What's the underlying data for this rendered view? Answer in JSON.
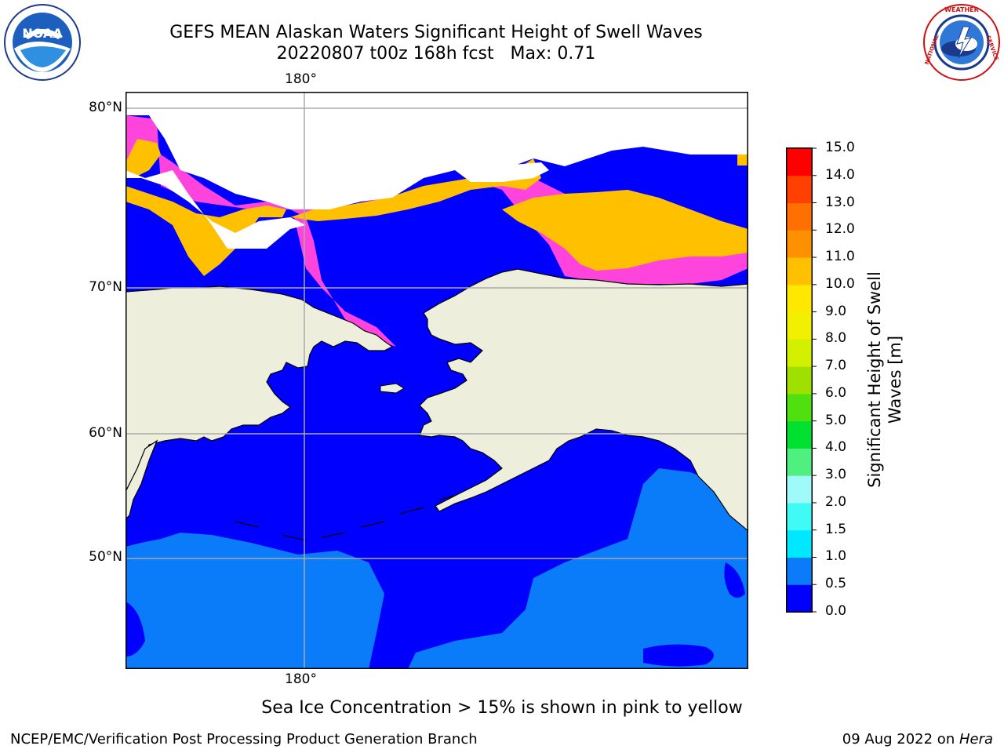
{
  "header": {
    "title_line1": "GEFS MEAN Alaskan Waters Significant Height of Swell Waves",
    "title_line2": "20220807 t00z 168h fcst   Max: 0.71"
  },
  "logos": {
    "left": {
      "icon": "noaa-logo-icon",
      "text": "NOAA",
      "ring_text": "NATIONAL OCEANIC AND ATMOSPHERIC ADMINISTRATION · U.S. DEPARTMENT OF COMMERCE"
    },
    "right": {
      "icon": "nws-logo-icon",
      "ring_text": "NATIONAL WEATHER SERVICE"
    }
  },
  "map": {
    "lon_labels": {
      "top": "180°",
      "bottom": "180°"
    },
    "lat_labels": [
      "80°N",
      "70°N",
      "60°N",
      "50°N"
    ],
    "colors": {
      "land": "#eeeedd",
      "water_low": "#0000ff",
      "water_mid": "#0a7cfa",
      "ice_pink": "#ff44dd",
      "ice_yellow": "#ffc000",
      "grid": "#aaaaaa"
    }
  },
  "colorbar": {
    "label": "Significant Height of Swell Waves [m]",
    "ticks": [
      "0.0",
      "0.5",
      "1.0",
      "1.5",
      "2.0",
      "3.0",
      "4.0",
      "5.0",
      "6.0",
      "7.0",
      "8.0",
      "9.0",
      "10.0",
      "11.0",
      "12.0",
      "13.0",
      "14.0",
      "15.0"
    ],
    "colors": [
      "#0000ff",
      "#0a7cfa",
      "#00e8ff",
      "#3ffaf5",
      "#a0fafa",
      "#50f080",
      "#00e030",
      "#50e010",
      "#a0e000",
      "#d2f000",
      "#f0f000",
      "#ffe800",
      "#ffc000",
      "#ff9000",
      "#ff7000",
      "#ff4000",
      "#ff0000"
    ]
  },
  "note": "Sea Ice Concentration > 15% is shown in pink to yellow",
  "footer": {
    "left": "NCEP/EMC/Verification Post Processing Product Generation Branch",
    "right_date": "09 Aug 2022 on ",
    "right_machine": "Hera"
  }
}
